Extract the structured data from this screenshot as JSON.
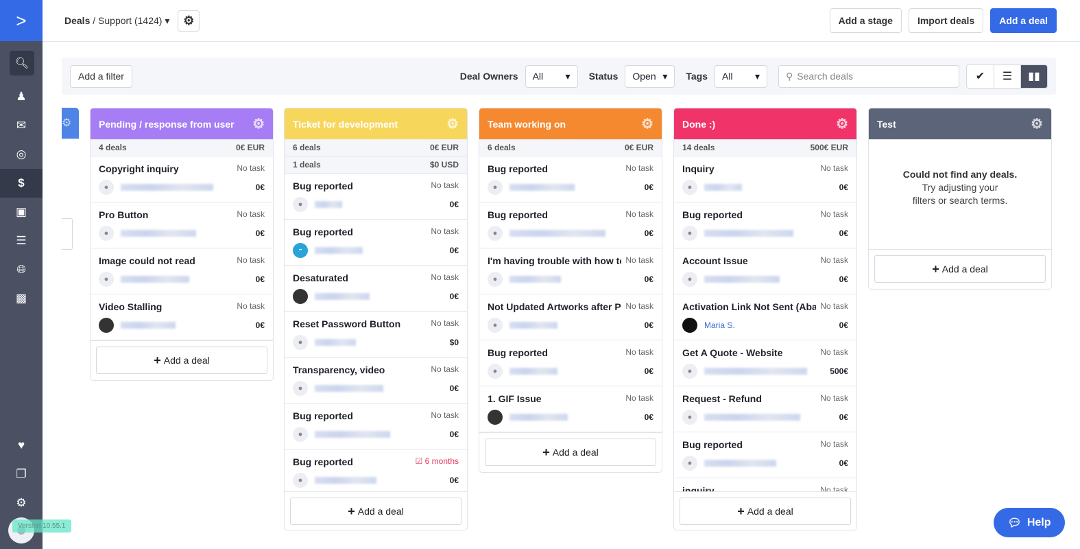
{
  "breadcrumb": {
    "root": "Deals",
    "separator": "/",
    "pipeline": "Support (1424)"
  },
  "toolbar": {
    "add_stage": "Add a stage",
    "import": "Import deals",
    "add_deal": "Add a deal"
  },
  "filters": {
    "add_filter": "Add a filter",
    "owners_label": "Deal Owners",
    "owners_value": "All",
    "status_label": "Status",
    "status_value": "Open",
    "tags_label": "Tags",
    "tags_value": "All",
    "search_placeholder": "Search deals",
    "active_view": "kanban"
  },
  "sidebar": {
    "items": [
      "search-icon",
      "contacts-icon",
      "email-icon",
      "automation-icon",
      "deals-icon",
      "conversations-icon",
      "lists-icon",
      "website-icon",
      "reports-icon"
    ],
    "bottom": [
      "heart-icon",
      "pages-icon",
      "settings-icon"
    ],
    "version": "Version 10.55.1"
  },
  "empty_state": {
    "title": "Could not find any deals.",
    "line1": "Try adjusting your",
    "line2": "filters or search terms."
  },
  "add_deal_label": "Add a deal",
  "help_label": "Help",
  "columns": [
    {
      "title": "Pending / response from user",
      "color": "#a67df5",
      "count": "4 deals",
      "total": "0€ EUR",
      "cards": [
        {
          "title": "Copyright inquiry",
          "task": "No task",
          "avatar": "placeholder",
          "amount": "0€"
        },
        {
          "title": "Pro Button",
          "task": "No task",
          "avatar": "placeholder",
          "amount": "0€"
        },
        {
          "title": "Image could not read",
          "task": "No task",
          "avatar": "placeholder",
          "amount": "0€"
        },
        {
          "title": "Video Stalling",
          "task": "No task",
          "avatar": "photo",
          "amount": "0€"
        }
      ]
    },
    {
      "title": "Ticket for development",
      "color": "#f7d65c",
      "count": "6 deals",
      "total": "0€ EUR",
      "count2": "1 deals",
      "total2": "$0 USD",
      "cards": [
        {
          "title": "Bug reported",
          "task": "No task",
          "avatar": "placeholder",
          "amount": "0€"
        },
        {
          "title": "Bug reported",
          "task": "No task",
          "avatar": "brand",
          "amount": "0€"
        },
        {
          "title": "Desaturated",
          "task": "No task",
          "avatar": "photo",
          "amount": "0€"
        },
        {
          "title": "Reset Password Button",
          "task": "No task",
          "avatar": "placeholder",
          "amount": "$0"
        },
        {
          "title": "Transparency, video",
          "task": "No task",
          "avatar": "placeholder",
          "amount": "0€"
        },
        {
          "title": "Bug reported",
          "task": "No task",
          "avatar": "placeholder",
          "amount": "0€"
        },
        {
          "title": "Bug reported",
          "task": "6 months",
          "task_due": true,
          "avatar": "placeholder",
          "amount": "0€"
        }
      ]
    },
    {
      "title": "Team working on",
      "color": "#f5892f",
      "count": "6 deals",
      "total": "0€ EUR",
      "cards": [
        {
          "title": "Bug reported",
          "task": "No task",
          "avatar": "placeholder",
          "amount": "0€"
        },
        {
          "title": "Bug reported",
          "task": "No task",
          "avatar": "placeholder",
          "amount": "0€"
        },
        {
          "title": "I'm having trouble with how text",
          "task": "No task",
          "avatar": "placeholder",
          "amount": "0€"
        },
        {
          "title": "Not Updated Artworks after Payr",
          "task": "No task",
          "avatar": "placeholder",
          "amount": "0€"
        },
        {
          "title": "Bug reported",
          "task": "No task",
          "avatar": "placeholder",
          "amount": "0€"
        },
        {
          "title": "1. GIF Issue",
          "task": "No task",
          "avatar": "photo",
          "amount": "0€"
        }
      ]
    },
    {
      "title": "Done :)",
      "color": "#f0346a",
      "count": "14 deals",
      "total": "500€ EUR",
      "cards": [
        {
          "title": "Inquiry",
          "task": "No task",
          "avatar": "placeholder",
          "amount": "0€"
        },
        {
          "title": "Bug reported",
          "task": "No task",
          "avatar": "placeholder",
          "amount": "0€"
        },
        {
          "title": "Account Issue",
          "task": "No task",
          "avatar": "placeholder",
          "amount": "0€"
        },
        {
          "title": "Activation Link Not Sent (Abando",
          "task": "No task",
          "avatar": "dark",
          "owner": "Maria S.",
          "amount": "0€"
        },
        {
          "title": "Get A Quote - Website",
          "task": "No task",
          "avatar": "placeholder",
          "amount": "500€"
        },
        {
          "title": "Request - Refund",
          "task": "No task",
          "avatar": "placeholder",
          "amount": "0€"
        },
        {
          "title": "Bug reported",
          "task": "No task",
          "avatar": "placeholder",
          "amount": "0€"
        },
        {
          "title": "inquiry",
          "task": "No task",
          "avatar": "placeholder",
          "amount": ""
        }
      ]
    },
    {
      "title": "Test",
      "color": "#5b6478",
      "count": "",
      "total": "",
      "cards": []
    }
  ]
}
